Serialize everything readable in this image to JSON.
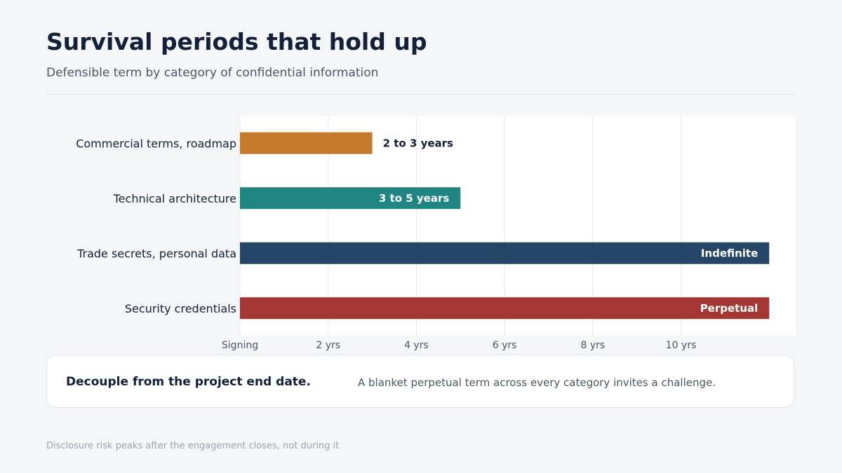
{
  "header": {
    "title": "Survival periods that hold up",
    "subtitle": "Defensible term by category of confidential information"
  },
  "chart_data": {
    "type": "bar",
    "orientation": "horizontal",
    "categories": [
      "Commercial terms, roadmap",
      "Technical architecture",
      "Trade secrets, personal data",
      "Security credentials"
    ],
    "values": [
      3,
      5,
      12,
      12
    ],
    "value_labels": [
      "2 to 3 years",
      "3 to 5 years",
      "Indefinite",
      "Perpetual"
    ],
    "colors": [
      "#c5792a",
      "#1e8582",
      "#244566",
      "#a43733"
    ],
    "x_ticks": [
      0,
      2,
      4,
      6,
      8,
      10
    ],
    "x_tick_labels": [
      "Signing",
      "2 yrs",
      "4 yrs",
      "6 yrs",
      "8 yrs",
      "10 yrs"
    ],
    "xlim": [
      0,
      12.6
    ],
    "xlabel": "",
    "ylabel": "",
    "grid": "vertical"
  },
  "callout": {
    "bold": "Decouple from the project end date.",
    "text": "A blanket perpetual term across every category invites a challenge."
  },
  "footnote": "Disclosure risk peaks after the engagement closes, not during it"
}
